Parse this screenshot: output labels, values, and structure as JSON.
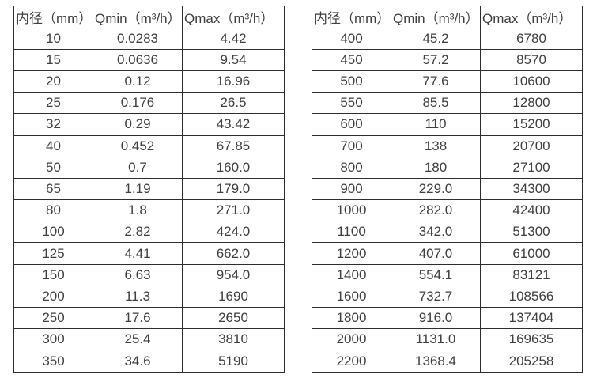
{
  "palette": {
    "text_color": "#3f3f3f",
    "border_color": "#2e2e2e",
    "background_color": "#ffffff"
  },
  "column_header_names": [
    "column-header-diameter",
    "column-header-qmin",
    "column-header-qmax"
  ],
  "tables": [
    {
      "name": "flow-table-small-diameters",
      "headers": [
        "内径（mm）",
        "Qmin（m³/h）",
        "Qmax（m³/h）"
      ],
      "rows": [
        [
          "10",
          "0.0283",
          "4.42"
        ],
        [
          "15",
          "0.0636",
          "9.54"
        ],
        [
          "20",
          "0.12",
          "16.96"
        ],
        [
          "25",
          "0.176",
          "26.5"
        ],
        [
          "32",
          "0.29",
          "43.42"
        ],
        [
          "40",
          "0.452",
          "67.85"
        ],
        [
          "50",
          "0.7",
          "160.0"
        ],
        [
          "65",
          "1.19",
          "179.0"
        ],
        [
          "80",
          "1.8",
          "271.0"
        ],
        [
          "100",
          "2.82",
          "424.0"
        ],
        [
          "125",
          "4.41",
          "662.0"
        ],
        [
          "150",
          "6.63",
          "954.0"
        ],
        [
          "200",
          "11.3",
          "1690"
        ],
        [
          "250",
          "17.6",
          "2650"
        ],
        [
          "300",
          "25.4",
          "3810"
        ],
        [
          "350",
          "34.6",
          "5190"
        ]
      ]
    },
    {
      "name": "flow-table-large-diameters",
      "headers": [
        "内径（mm）",
        "Qmin（m³/h）",
        "Qmax（m³/h）"
      ],
      "rows": [
        [
          "400",
          "45.2",
          "6780"
        ],
        [
          "450",
          "57.2",
          "8570"
        ],
        [
          "500",
          "77.6",
          "10600"
        ],
        [
          "550",
          "85.5",
          "12800"
        ],
        [
          "600",
          "110",
          "15200"
        ],
        [
          "700",
          "138",
          "20700"
        ],
        [
          "800",
          "180",
          "27100"
        ],
        [
          "900",
          "229.0",
          "34300"
        ],
        [
          "1000",
          "282.0",
          "42400"
        ],
        [
          "1100",
          "342.0",
          "51300"
        ],
        [
          "1200",
          "407.0",
          "61000"
        ],
        [
          "1400",
          "554.1",
          "83121"
        ],
        [
          "1600",
          "732.7",
          "108566"
        ],
        [
          "1800",
          "916.0",
          "137404"
        ],
        [
          "2000",
          "1131.0",
          "169635"
        ],
        [
          "2200",
          "1368.4",
          "205258"
        ]
      ]
    }
  ]
}
